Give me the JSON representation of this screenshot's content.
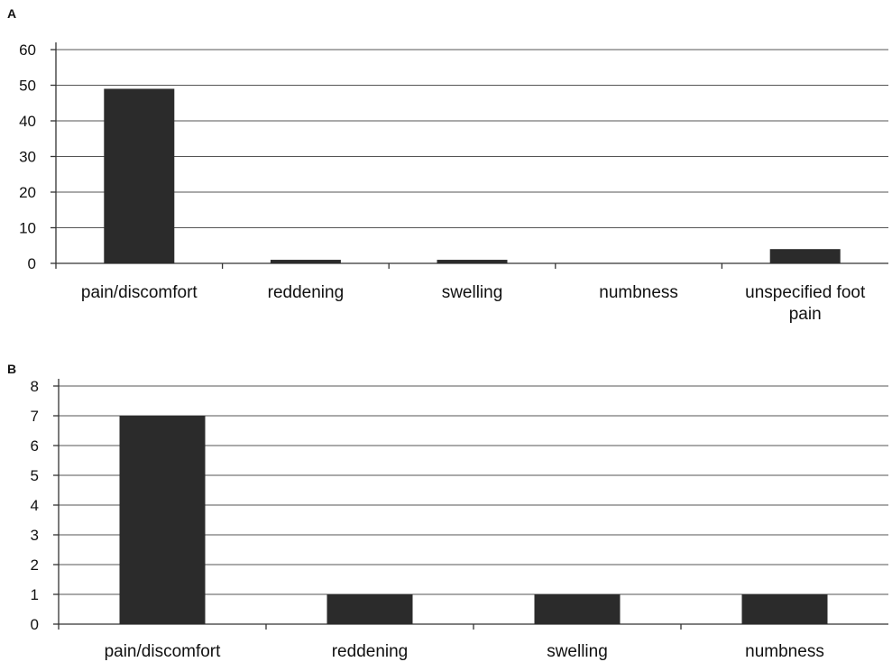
{
  "chart_data": [
    {
      "type": "bar",
      "panel_label": "A",
      "categories": [
        "pain/discomfort",
        "reddening",
        "swelling",
        "numbness",
        "unspecified foot pain"
      ],
      "values": [
        49,
        1,
        1,
        0,
        4
      ],
      "ylim": [
        0,
        60
      ],
      "yticks": [
        0,
        10,
        20,
        30,
        40,
        50,
        60
      ],
      "grid": true,
      "colors": {
        "bar": "#2b2b2b"
      }
    },
    {
      "type": "bar",
      "panel_label": "B",
      "categories": [
        "pain/discomfort",
        "reddening",
        "swelling",
        "numbness"
      ],
      "values": [
        7,
        1,
        1,
        1
      ],
      "ylim": [
        0,
        8
      ],
      "yticks": [
        0,
        1,
        2,
        3,
        4,
        5,
        6,
        7,
        8
      ],
      "grid": true,
      "colors": {
        "bar": "#2b2b2b"
      }
    }
  ]
}
